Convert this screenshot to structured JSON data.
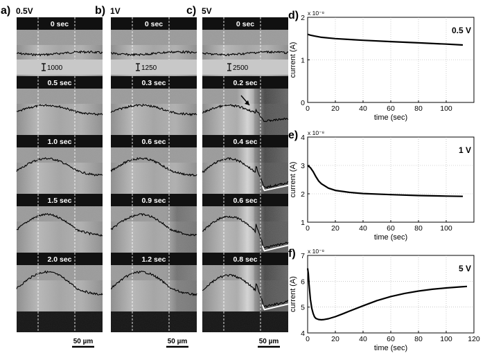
{
  "panels": [
    {
      "letter": "a)",
      "voltage": "0.5V",
      "marker": "1000",
      "frames": [
        "0 sec",
        "0.5 sec",
        "1.0 sec",
        "1.5 sec",
        "2.0 sec"
      ],
      "scalebar": "50 µm"
    },
    {
      "letter": "b)",
      "voltage": "1V",
      "marker": "1250",
      "frames": [
        "0 sec",
        "0.3 sec",
        "0.6 sec",
        "0.9 sec",
        "1.2 sec"
      ],
      "scalebar": "50 µm"
    },
    {
      "letter": "c)",
      "voltage": "5V",
      "marker": "2500",
      "frames": [
        "0 sec",
        "0.2 sec",
        "0.4 sec",
        "0.6 sec",
        "0.8 sec"
      ],
      "scalebar": "50 µm"
    }
  ],
  "chart_data": [
    {
      "type": "line",
      "panel_label": "d)",
      "annotation": "0.5 V",
      "exponent": "x 10⁻⁸",
      "xlabel": "time (sec)",
      "ylabel": "current (A)",
      "xlim": [
        0,
        120
      ],
      "ylim": [
        0,
        2
      ],
      "grid": true,
      "xticks": [
        "0",
        "20",
        "40",
        "60",
        "80",
        "100"
      ],
      "yticks": [
        "0",
        "1",
        "2"
      ],
      "series": [
        {
          "x": [
            0,
            2,
            5,
            10,
            20,
            30,
            40,
            60,
            80,
            100,
            112
          ],
          "y": [
            1.6,
            1.58,
            1.56,
            1.53,
            1.5,
            1.48,
            1.46,
            1.43,
            1.4,
            1.37,
            1.35
          ]
        }
      ]
    },
    {
      "type": "line",
      "panel_label": "e)",
      "annotation": "1 V",
      "exponent": "x 10⁻⁸",
      "xlabel": "time (sec)",
      "ylabel": "current (A)",
      "xlim": [
        0,
        120
      ],
      "ylim": [
        1,
        4
      ],
      "grid": true,
      "xticks": [
        "0",
        "20",
        "40",
        "60",
        "80",
        "100"
      ],
      "yticks": [
        "1",
        "2",
        "3",
        "4"
      ],
      "series": [
        {
          "x": [
            0,
            2,
            4,
            6,
            8,
            10,
            15,
            20,
            30,
            40,
            60,
            80,
            100,
            112
          ],
          "y": [
            3.0,
            2.92,
            2.78,
            2.6,
            2.45,
            2.35,
            2.2,
            2.12,
            2.05,
            2.01,
            1.97,
            1.94,
            1.92,
            1.91
          ]
        }
      ]
    },
    {
      "type": "line",
      "panel_label": "f)",
      "annotation": "5 V",
      "exponent": "x 10⁻⁸",
      "xlabel": "time (sec)",
      "ylabel": "current (A)",
      "xlim": [
        0,
        120
      ],
      "ylim": [
        4,
        7
      ],
      "grid": true,
      "xticks": [
        "0",
        "20",
        "40",
        "60",
        "80",
        "100",
        "120"
      ],
      "yticks": [
        "4",
        "5",
        "6",
        "7"
      ],
      "series": [
        {
          "x": [
            0,
            0.5,
            1,
            2,
            3,
            4,
            5,
            6,
            8,
            10,
            12,
            15,
            20,
            25,
            30,
            40,
            50,
            60,
            70,
            80,
            90,
            100,
            110,
            115
          ],
          "y": [
            6.5,
            6.3,
            5.9,
            5.3,
            4.95,
            4.75,
            4.62,
            4.56,
            4.52,
            4.51,
            4.52,
            4.55,
            4.63,
            4.73,
            4.84,
            5.05,
            5.25,
            5.41,
            5.53,
            5.62,
            5.69,
            5.74,
            5.78,
            5.8
          ]
        }
      ]
    }
  ]
}
